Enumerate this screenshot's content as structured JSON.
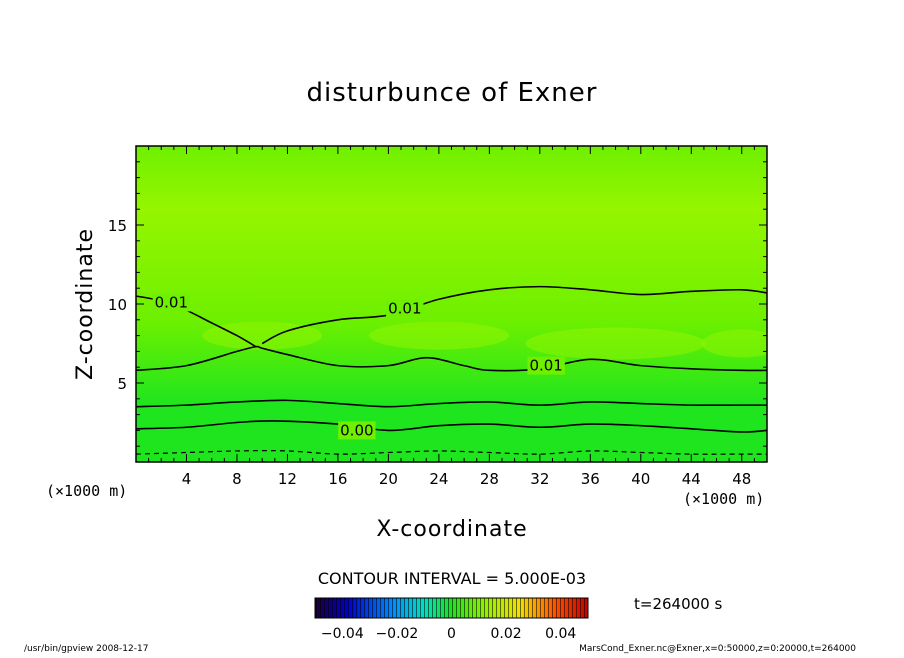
{
  "chart_data": {
    "type": "contour",
    "title": "disturbunce of Exner",
    "xlabel": "X-coordinate",
    "ylabel": "Z-coordinate",
    "x_unit": "(×1000 m)",
    "y_unit": "(×1000 m)",
    "xlim": [
      0,
      50
    ],
    "ylim": [
      0,
      20
    ],
    "x_ticks": [
      4,
      8,
      12,
      16,
      20,
      24,
      28,
      32,
      36,
      40,
      44,
      48
    ],
    "y_ticks": [
      5,
      10,
      15
    ],
    "contour_interval_text": "CONTOUR INTERVAL = 5.000E-03",
    "time_text": "t=264000 s",
    "colorbar": {
      "min": -0.05,
      "max": 0.05,
      "tick_values": [
        -0.04,
        -0.02,
        0,
        0.02,
        0.04
      ],
      "tick_labels": [
        "−0.04",
        "−0.02",
        "0",
        "0.02",
        "0.04"
      ]
    },
    "colors": {
      "field_low": "#1ee51e",
      "field_mid": "#6ef000",
      "field_high": "#96f500",
      "contour": "#000000"
    },
    "contours": [
      {
        "level": "0.01",
        "x": [
          0,
          2,
          4,
          6,
          8,
          9.5
        ],
        "y": [
          10.5,
          10.2,
          9.6,
          8.8,
          8.0,
          7.3
        ]
      },
      {
        "level": "0.01",
        "x": [
          10,
          12,
          16,
          20,
          24,
          28,
          32,
          36,
          40,
          44,
          48,
          50
        ],
        "y": [
          7.5,
          8.3,
          9.0,
          9.3,
          10.3,
          10.9,
          11.1,
          10.9,
          10.6,
          10.8,
          10.9,
          10.7
        ]
      },
      {
        "level": "0.01",
        "x": [
          0,
          4,
          8,
          9.5,
          10,
          12,
          16,
          20,
          23,
          26,
          28,
          32,
          36,
          40,
          44,
          48,
          50
        ],
        "y": [
          5.8,
          6.1,
          7.0,
          7.3,
          7.2,
          6.8,
          6.1,
          6.1,
          6.6,
          6.1,
          5.8,
          5.9,
          6.5,
          6.1,
          5.9,
          5.8,
          5.8
        ]
      },
      {
        "level": "0.005",
        "x": [
          0,
          4,
          8,
          12,
          16,
          20,
          24,
          28,
          32,
          36,
          40,
          44,
          48,
          50
        ],
        "y": [
          3.5,
          3.6,
          3.8,
          3.9,
          3.7,
          3.5,
          3.7,
          3.8,
          3.6,
          3.8,
          3.7,
          3.6,
          3.6,
          3.6
        ]
      },
      {
        "level": "0.00",
        "x": [
          0,
          4,
          8,
          11,
          16,
          20,
          24,
          28,
          32,
          36,
          40,
          44,
          48,
          50
        ],
        "y": [
          2.1,
          2.2,
          2.5,
          2.6,
          2.4,
          2.0,
          2.3,
          2.4,
          2.2,
          2.4,
          2.3,
          2.1,
          1.9,
          2.0
        ]
      },
      {
        "level": "-0.005",
        "dashed": true,
        "x": [
          0,
          4,
          8,
          12,
          16,
          20,
          24,
          28,
          32,
          36,
          40,
          44,
          48,
          50
        ],
        "y": [
          0.5,
          0.6,
          0.7,
          0.7,
          0.5,
          0.6,
          0.7,
          0.6,
          0.5,
          0.7,
          0.6,
          0.5,
          0.5,
          0.5
        ]
      }
    ],
    "contour_labels": [
      {
        "text": "0.01",
        "x": 2.8,
        "y": 10.1
      },
      {
        "text": "0.01",
        "x": 21.3,
        "y": 9.7
      },
      {
        "text": "0.01",
        "x": 32.5,
        "y": 6.1
      },
      {
        "text": "0.00",
        "x": 17.5,
        "y": 2.0
      }
    ]
  },
  "footer": {
    "left": "/usr/bin/gpview  2008-12-17",
    "right": "MarsCond_Exner.nc@Exner,x=0:50000,z=0:20000,t=264000"
  }
}
